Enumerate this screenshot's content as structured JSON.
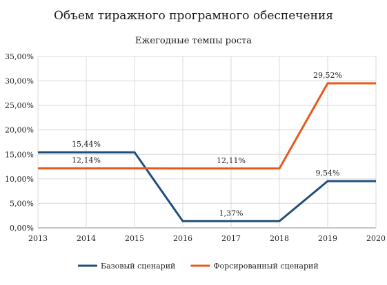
{
  "chart_data": {
    "type": "line",
    "title": "Объем тиражного програмного обеспечения",
    "subtitle": "Ежегодные темпы роста",
    "xlabel": "",
    "ylabel": "",
    "categories": [
      "2013",
      "2014",
      "2015",
      "2016",
      "2017",
      "2018",
      "2019",
      "2020"
    ],
    "y_tick_labels": [
      "0,00%",
      "5,00%",
      "10,00%",
      "15,00%",
      "20,00%",
      "25,00%",
      "30,00%",
      "35,00%"
    ],
    "ylim": [
      0,
      35
    ],
    "grid": "horizontal",
    "legend": "bottom",
    "series": [
      {
        "name": "Базовый сценарий",
        "color": "#1f4e79",
        "values": [
          15.44,
          15.44,
          15.44,
          1.37,
          1.37,
          1.37,
          9.54,
          9.54
        ]
      },
      {
        "name": "Форсированный сценарий",
        "color": "#e8581d",
        "values": [
          12.14,
          12.14,
          12.14,
          12.11,
          12.11,
          12.11,
          29.52,
          29.52
        ]
      }
    ],
    "annotations": [
      {
        "series": 0,
        "at": "2014",
        "text": "15,44%"
      },
      {
        "series": 1,
        "at": "2014",
        "text": "12,14%"
      },
      {
        "series": 0,
        "at": "2017",
        "text": "1,37%"
      },
      {
        "series": 1,
        "at": "2017",
        "text": "12,11%"
      },
      {
        "series": 0,
        "at": "2019",
        "text": "9,54%"
      },
      {
        "series": 1,
        "at": "2019",
        "text": "29,52%"
      }
    ]
  }
}
